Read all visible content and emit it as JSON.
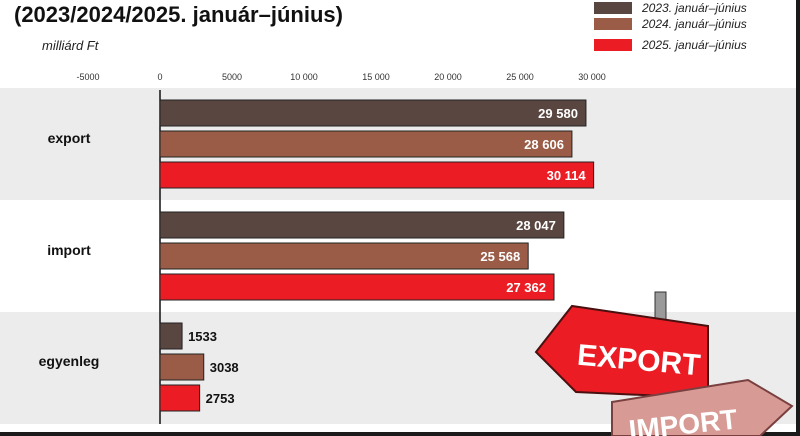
{
  "title": "(2023/2024/2025. január–június)",
  "unit": "milliárd Ft",
  "colors": {
    "s2023": "#5a4640",
    "s2024": "#9a5c47",
    "s2025": "#ec1c24"
  },
  "sign": {
    "export": "EXPORT",
    "import": "IMPORT"
  },
  "chart_data": {
    "type": "bar",
    "orientation": "horizontal",
    "categories": [
      "export",
      "import",
      "egyenleg"
    ],
    "series": [
      {
        "name": "2023. január–június",
        "values": [
          29580,
          28047,
          1533
        ],
        "labels": [
          "29 580",
          "28 047",
          "1533"
        ],
        "color": "#5a4640"
      },
      {
        "name": "2024. január–június",
        "values": [
          28606,
          25568,
          3038
        ],
        "labels": [
          "28 606",
          "25 568",
          "3038"
        ],
        "color": "#9a5c47"
      },
      {
        "name": "2025. január–június",
        "values": [
          30114,
          27362,
          2753
        ],
        "labels": [
          "30 114",
          "27 362",
          "2753"
        ],
        "color": "#ec1c24"
      }
    ],
    "xlim": [
      -5000,
      30000
    ],
    "ticks": [
      -5000,
      0,
      5000,
      10000,
      15000,
      20000,
      25000,
      30000
    ],
    "tick_labels": [
      "-5000",
      "0",
      "5000",
      "10 000",
      "15 000",
      "20 000",
      "25 000",
      "30 000"
    ],
    "legend": "top-right",
    "grid": false
  }
}
